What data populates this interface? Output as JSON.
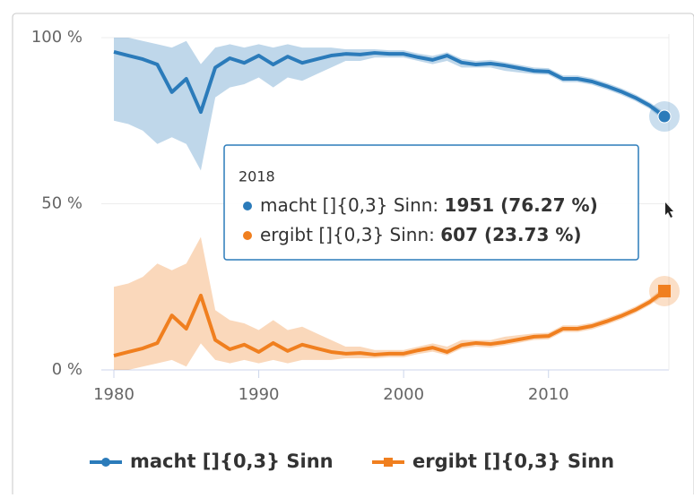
{
  "chart_data": {
    "type": "line",
    "x": [
      1980,
      1981,
      1982,
      1983,
      1984,
      1985,
      1986,
      1987,
      1988,
      1989,
      1990,
      1991,
      1992,
      1993,
      1994,
      1995,
      1996,
      1997,
      1998,
      1999,
      2000,
      2001,
      2002,
      2003,
      2004,
      2005,
      2006,
      2007,
      2008,
      2009,
      2010,
      2011,
      2012,
      2013,
      2014,
      2015,
      2016,
      2017,
      2018
    ],
    "series": [
      {
        "name": "macht []{0,3} Sinn",
        "color": "#2b7bba",
        "marker": "circle",
        "values": [
          95.7,
          94.6,
          93.5,
          91.9,
          83.6,
          87.6,
          77.6,
          91,
          93.8,
          92.4,
          94.6,
          91.9,
          94.3,
          92.4,
          93.5,
          94.6,
          95.1,
          94.9,
          95.4,
          95.1,
          95.1,
          94.1,
          93.3,
          94.6,
          92.5,
          91.9,
          92.2,
          91.6,
          90.8,
          90,
          89.8,
          87.6,
          87.6,
          86.8,
          85.4,
          83.8,
          81.9,
          79.5,
          76.27
        ],
        "low": [
          75,
          74,
          72,
          68,
          70,
          68,
          60,
          82,
          85,
          86,
          88,
          85,
          88,
          87,
          89,
          91,
          93,
          93,
          94,
          94,
          94,
          93,
          92,
          93,
          91,
          91,
          91,
          90,
          89.5,
          89,
          88.8,
          86.6,
          86.6,
          85.8,
          84.4,
          82.8,
          80.9,
          78.5,
          75
        ],
        "high": [
          100,
          100,
          99,
          98,
          97,
          99,
          92,
          97,
          98,
          97,
          98,
          97,
          98,
          97,
          97,
          97,
          96.5,
          96.5,
          96.5,
          96.2,
          96.2,
          95.2,
          94.5,
          95.6,
          93.6,
          93,
          93.3,
          92.6,
          91.8,
          91,
          90.8,
          88.6,
          88.6,
          87.8,
          86.4,
          84.8,
          82.9,
          80.5,
          77.5
        ]
      },
      {
        "name": "ergibt []{0,3} Sinn",
        "color": "#f07f1f",
        "marker": "square",
        "values": [
          4.3,
          5.4,
          6.5,
          8.1,
          16.4,
          12.4,
          22.4,
          9,
          6.2,
          7.6,
          5.4,
          8.1,
          5.7,
          7.6,
          6.5,
          5.4,
          4.9,
          5.1,
          4.6,
          4.9,
          4.9,
          5.9,
          6.7,
          5.4,
          7.5,
          8.1,
          7.8,
          8.4,
          9.2,
          10,
          10.2,
          12.4,
          12.4,
          13.2,
          14.6,
          16.2,
          18.1,
          20.5,
          23.73
        ],
        "low": [
          0,
          0,
          1,
          2,
          3,
          1,
          8,
          3,
          2,
          3,
          2,
          3,
          2,
          3,
          3,
          3,
          3.5,
          3.5,
          3.5,
          3.8,
          3.8,
          4.8,
          5.5,
          4.4,
          6.4,
          7,
          6.7,
          7.4,
          8.2,
          9,
          9.2,
          11.4,
          11.4,
          12.2,
          13.6,
          15.2,
          17.1,
          19.5,
          22.5
        ],
        "high": [
          25,
          26,
          28,
          32,
          30,
          32,
          40,
          18,
          15,
          14,
          12,
          15,
          12,
          13,
          11,
          9,
          7,
          7,
          6,
          6,
          6,
          7,
          8,
          7,
          9,
          9,
          9,
          10,
          10.5,
          11,
          11.2,
          13.4,
          13.4,
          14.2,
          15.6,
          17.2,
          19.1,
          21.5,
          25
        ]
      }
    ],
    "xlim": [
      1980,
      2018
    ],
    "xticks": [
      1980,
      1990,
      2000,
      2010
    ],
    "ylim": [
      0,
      100
    ],
    "yticks": [
      {
        "value": 0,
        "label": "0 %"
      },
      {
        "value": 50,
        "label": "50 %"
      },
      {
        "value": 100,
        "label": "100 %"
      }
    ],
    "grid": true,
    "tooltip": {
      "title": "2018",
      "items": [
        {
          "label": "macht []{0,3} Sinn:",
          "value": "1951 (76.27 %)"
        },
        {
          "label": "ergibt []{0,3} Sinn:",
          "value": "607 (23.73 %)"
        }
      ]
    }
  }
}
